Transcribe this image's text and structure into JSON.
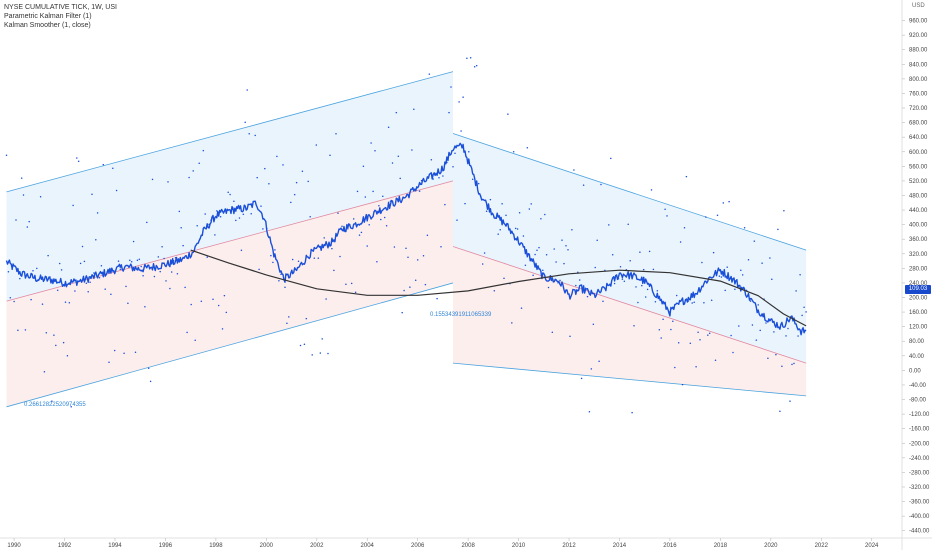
{
  "legend": {
    "line1": "NYSE CUMULATIVE TICK, 1W, USI",
    "line2": "Parametric Kalman Filter (1)",
    "line3": "Kalman Smoother (1, close)"
  },
  "currency": "USD",
  "last_price": "109.03",
  "channel_labels": [
    "0.26612822520974355",
    "0.15534391911065339"
  ],
  "colors": {
    "series": "#1a4fd8",
    "smoother": "#333333",
    "upper_band": "#4aa3df",
    "lower_band": "#e08aa0",
    "upper_fill": "#eaf4fd",
    "lower_fill": "#fdeeee"
  },
  "chart_data": {
    "type": "line",
    "title": "NYSE CUMULATIVE TICK, 1W, USI",
    "xlabel": "",
    "ylabel": "",
    "xlim": [
      1989.6,
      2025.2
    ],
    "ylim": [
      -460,
      1000
    ],
    "x_ticks": [
      "1990",
      "1992",
      "1994",
      "1996",
      "1998",
      "2000",
      "2002",
      "2004",
      "2006",
      "2008",
      "2010",
      "2012",
      "2014",
      "2016",
      "2018",
      "2020",
      "2022",
      "2024"
    ],
    "y_ticks": [
      "960.00",
      "920.00",
      "880.00",
      "840.00",
      "800.00",
      "760.00",
      "720.00",
      "680.00",
      "640.00",
      "600.00",
      "560.00",
      "520.00",
      "480.00",
      "440.00",
      "400.00",
      "360.00",
      "320.00",
      "280.00",
      "240.00",
      "200.00",
      "160.00",
      "120.00",
      "80.00",
      "40.00",
      "0.00",
      "-40.00",
      "-80.00",
      "-120.00",
      "-160.00",
      "-200.00",
      "-240.00",
      "-280.00",
      "-320.00",
      "-360.00",
      "-400.00",
      "-440.00"
    ],
    "series": [
      {
        "name": "NYSE CUMULATIVE TICK",
        "x": [
          1989.7,
          1990.3,
          1990.9,
          1991.5,
          1992.0,
          1992.6,
          1993.2,
          1993.8,
          1994.4,
          1995.0,
          1995.6,
          1996.1,
          1996.7,
          1997.1,
          1997.5,
          1998.0,
          1998.6,
          1999.2,
          1999.6,
          1999.9,
          2000.3,
          2000.7,
          2001.2,
          2001.7,
          2002.1,
          2002.6,
          2003.0,
          2003.5,
          2004.0,
          2004.5,
          2005.0,
          2005.5,
          2006.0,
          2006.5,
          2007.0,
          2007.4,
          2007.8,
          2008.1,
          2008.5,
          2009.0,
          2009.5,
          2010.0,
          2010.5,
          2011.0,
          2011.6,
          2012.0,
          2012.5,
          2013.0,
          2013.5,
          2014.0,
          2014.5,
          2015.0,
          2015.5,
          2016.0,
          2016.5,
          2017.0,
          2017.5,
          2018.0,
          2018.5,
          2019.0,
          2019.5,
          2020.0,
          2020.4,
          2020.8,
          2021.2,
          2021.4
        ],
        "values": [
          298,
          265,
          252,
          248,
          240,
          245,
          258,
          272,
          285,
          278,
          285,
          292,
          305,
          325,
          380,
          425,
          440,
          445,
          460,
          420,
          320,
          250,
          275,
          318,
          335,
          352,
          388,
          400,
          420,
          440,
          458,
          475,
          505,
          530,
          555,
          610,
          615,
          555,
          480,
          430,
          400,
          355,
          305,
          255,
          245,
          205,
          225,
          205,
          228,
          265,
          260,
          245,
          205,
          160,
          190,
          210,
          250,
          275,
          250,
          215,
          165,
          135,
          120,
          145,
          108,
          109
        ]
      },
      {
        "name": "Kalman Smoother",
        "x": [
          1997.0,
          1998.5,
          2000.0,
          2002.0,
          2004.0,
          2006.0,
          2008.0,
          2010.0,
          2012.0,
          2014.0,
          2016.0,
          2018.0,
          2019.5,
          2020.5,
          2021.4
        ],
        "values": [
          330,
          295,
          262,
          224,
          206,
          206,
          218,
          244,
          265,
          275,
          268,
          245,
          205,
          155,
          122
        ]
      }
    ],
    "channels": [
      {
        "label": "0.26612822520974355",
        "x": [
          1989.7,
          2007.4
        ],
        "upper": [
          490,
          820
        ],
        "mid": [
          190,
          520
        ],
        "lower": [
          -100,
          240
        ]
      },
      {
        "label": "0.15534391911065339",
        "x": [
          2007.4,
          2021.4
        ],
        "upper": [
          650,
          330
        ],
        "mid": [
          340,
          20
        ],
        "lower": [
          20,
          -70
        ]
      }
    ]
  }
}
